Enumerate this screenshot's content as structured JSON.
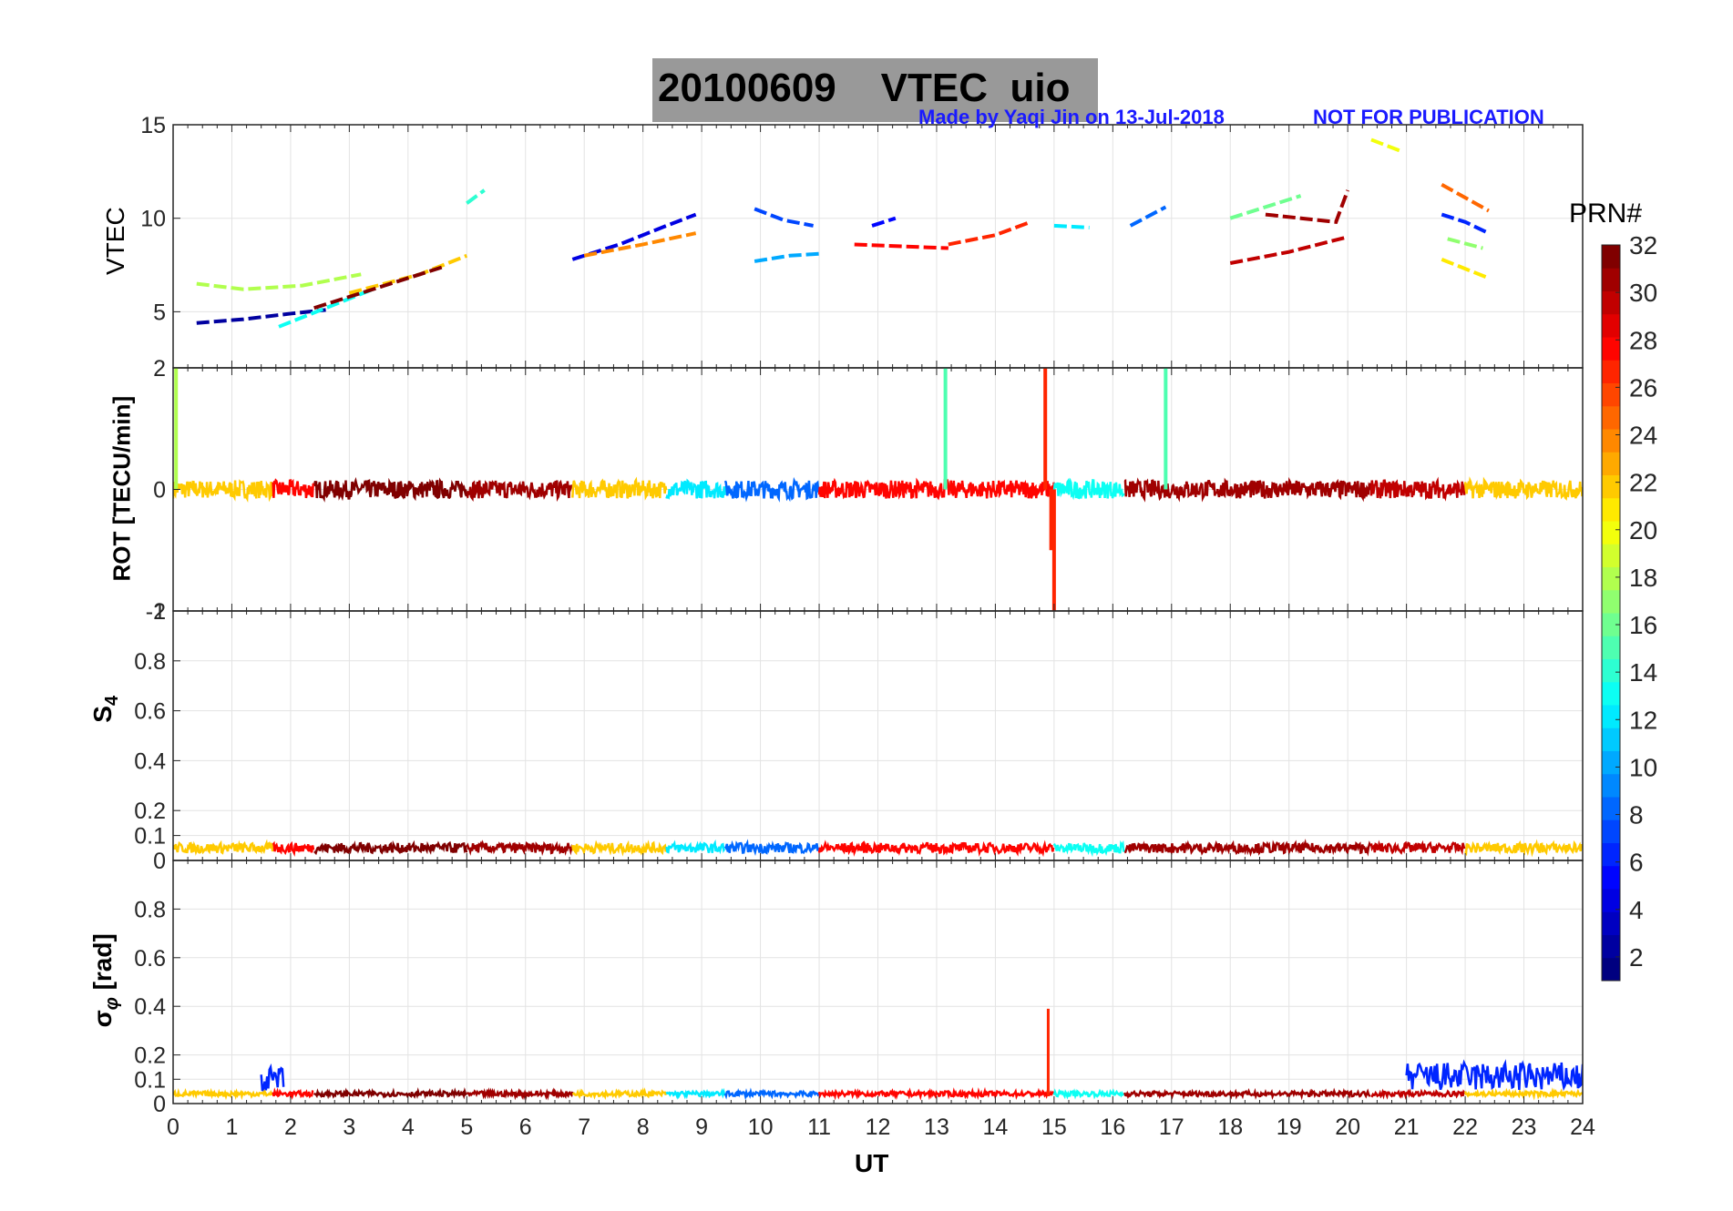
{
  "figure": {
    "date": "20100609",
    "quantity": "VTEC",
    "station": "uio",
    "credit": "Made by Yaqi Jin on 13-Jul-2018",
    "notice": "NOT FOR PUBLICATION"
  },
  "colorbar": {
    "title": "PRN#",
    "ticks": [
      "2",
      "4",
      "6",
      "8",
      "10",
      "12",
      "14",
      "16",
      "18",
      "20",
      "22",
      "24",
      "26",
      "28",
      "30",
      "32"
    ],
    "range": [
      1,
      32
    ],
    "colormap": "jet"
  },
  "chart_data": [
    {
      "type": "line",
      "panel": "VTEC",
      "ylabel": "VTEC",
      "ylim": [
        2,
        15
      ],
      "yticks": [
        "5",
        "10",
        "15"
      ],
      "xlim": [
        0,
        24
      ],
      "series": [
        {
          "prn": 2,
          "x": [
            0.4,
            1.2,
            2.0,
            2.6
          ],
          "y": [
            4.4,
            4.6,
            4.9,
            5.1
          ]
        },
        {
          "prn": 4,
          "x": [
            6.8,
            7.6,
            8.4,
            8.9
          ],
          "y": [
            7.8,
            8.6,
            9.6,
            10.2
          ]
        },
        {
          "prn": 5,
          "x": [
            11.9,
            12.3
          ],
          "y": [
            9.6,
            10.0
          ]
        },
        {
          "prn": 6,
          "x": [
            21.6,
            22.0,
            22.4
          ],
          "y": [
            10.2,
            9.8,
            9.2
          ]
        },
        {
          "prn": 7,
          "x": [
            9.9,
            10.4,
            10.9
          ],
          "y": [
            10.5,
            9.9,
            9.6
          ]
        },
        {
          "prn": 8,
          "x": [
            16.3,
            16.9
          ],
          "y": [
            9.6,
            10.6
          ]
        },
        {
          "prn": 10,
          "x": [
            9.9,
            10.5,
            11.0
          ],
          "y": [
            7.7,
            8.0,
            8.1
          ]
        },
        {
          "prn": 12,
          "x": [
            15.0,
            15.6
          ],
          "y": [
            9.6,
            9.5
          ]
        },
        {
          "prn": 13,
          "x": [
            1.8,
            2.6,
            3.4
          ],
          "y": [
            4.2,
            5.2,
            6.2
          ]
        },
        {
          "prn": 14,
          "x": [
            5.0,
            5.3
          ],
          "y": [
            10.8,
            11.5
          ]
        },
        {
          "prn": 16,
          "x": [
            18.0,
            19.2
          ],
          "y": [
            10.0,
            11.2
          ]
        },
        {
          "prn": 17,
          "x": [
            21.7,
            22.3
          ],
          "y": [
            8.9,
            8.4
          ]
        },
        {
          "prn": 18,
          "x": [
            0.4,
            1.2,
            2.2,
            3.2
          ],
          "y": [
            6.5,
            6.2,
            6.4,
            7.0
          ]
        },
        {
          "prn": 20,
          "x": [
            20.4,
            20.9
          ],
          "y": [
            14.2,
            13.6
          ]
        },
        {
          "prn": 21,
          "x": [
            21.6,
            22.4
          ],
          "y": [
            7.8,
            6.8
          ]
        },
        {
          "prn": 22,
          "x": [
            3.0,
            4.2,
            5.0
          ],
          "y": [
            6.0,
            7.0,
            8.0
          ]
        },
        {
          "prn": 24,
          "x": [
            7.0,
            8.0,
            8.9
          ],
          "y": [
            8.0,
            8.6,
            9.2
          ]
        },
        {
          "prn": 25,
          "x": [
            21.6,
            22.4
          ],
          "y": [
            11.8,
            10.4
          ]
        },
        {
          "prn": 27,
          "x": [
            13.2,
            14.0,
            14.6
          ],
          "y": [
            8.6,
            9.1,
            9.8
          ]
        },
        {
          "prn": 28,
          "x": [
            11.6,
            12.4,
            13.2
          ],
          "y": [
            8.6,
            8.5,
            8.4
          ]
        },
        {
          "prn": 30,
          "x": [
            18.0,
            19.0,
            20.0
          ],
          "y": [
            7.6,
            8.2,
            9.0
          ]
        },
        {
          "prn": 31,
          "x": [
            18.6,
            19.8,
            20.0
          ],
          "y": [
            10.2,
            9.8,
            11.5
          ]
        },
        {
          "prn": 32,
          "x": [
            2.4,
            3.6,
            4.6
          ],
          "y": [
            5.2,
            6.4,
            7.4
          ]
        }
      ]
    },
    {
      "type": "line",
      "panel": "ROT",
      "ylabel": "ROT [TECU/min]",
      "ylim": [
        -2,
        2
      ],
      "yticks": [
        "-2",
        "0",
        "2"
      ],
      "xlim": [
        0,
        24
      ],
      "baseline_noise": 0.15,
      "series": [
        {
          "prn": 22,
          "start": 0.0,
          "end": 1.7
        },
        {
          "prn": 28,
          "start": 1.7,
          "end": 2.4
        },
        {
          "prn": 32,
          "start": 2.4,
          "end": 5.0
        },
        {
          "prn": 31,
          "start": 5.0,
          "end": 6.8
        },
        {
          "prn": 22,
          "start": 6.8,
          "end": 8.4
        },
        {
          "prn": 12,
          "start": 8.4,
          "end": 9.4
        },
        {
          "prn": 8,
          "start": 9.4,
          "end": 11.0
        },
        {
          "prn": 28,
          "start": 11.0,
          "end": 15.0
        },
        {
          "prn": 13,
          "start": 15.0,
          "end": 16.2
        },
        {
          "prn": 31,
          "start": 16.2,
          "end": 20.4
        },
        {
          "prn": 30,
          "start": 20.4,
          "end": 22.0
        },
        {
          "prn": 22,
          "start": 22.0,
          "end": 24.0
        }
      ],
      "spikes": [
        {
          "prn": 18,
          "x": 0.05,
          "y": 2.0
        },
        {
          "prn": 15,
          "x": 13.15,
          "y": 2.0
        },
        {
          "prn": 27,
          "x": 14.85,
          "y": 2.0
        },
        {
          "prn": 27,
          "x": 14.95,
          "y": -1.0
        },
        {
          "prn": 27,
          "x": 15.0,
          "y": -2.0
        },
        {
          "prn": 15,
          "x": 16.9,
          "y": 2.0
        }
      ]
    },
    {
      "type": "line",
      "panel": "S4",
      "ylabel": "S4",
      "ylim": [
        0,
        1
      ],
      "yticks": [
        "0",
        "0.1",
        "0.2",
        "0.4",
        "0.6",
        "0.8",
        "1"
      ],
      "xlim": [
        0,
        24
      ],
      "baseline": 0.05,
      "baseline_noise": 0.04
    },
    {
      "type": "line",
      "panel": "sigma_phi",
      "ylabel": "σφ [rad]",
      "ylim": [
        0,
        1
      ],
      "yticks": [
        "0",
        "0.1",
        "0.2",
        "0.4",
        "0.6",
        "0.8"
      ],
      "xlim": [
        0,
        24
      ],
      "xticks": [
        "0",
        "1",
        "2",
        "3",
        "4",
        "5",
        "6",
        "7",
        "8",
        "9",
        "10",
        "11",
        "12",
        "13",
        "14",
        "15",
        "16",
        "17",
        "18",
        "19",
        "20",
        "21",
        "22",
        "23",
        "24"
      ],
      "xlabel": "UT",
      "baseline": 0.04,
      "spikes": [
        {
          "prn": 27,
          "x": 14.9,
          "y": 0.39
        }
      ],
      "elevated": [
        {
          "prn": 6,
          "x": [
            1.5,
            1.9
          ],
          "y": 0.15
        },
        {
          "prn": 6,
          "x": [
            21.0,
            24.0
          ],
          "y": 0.17
        }
      ]
    }
  ]
}
